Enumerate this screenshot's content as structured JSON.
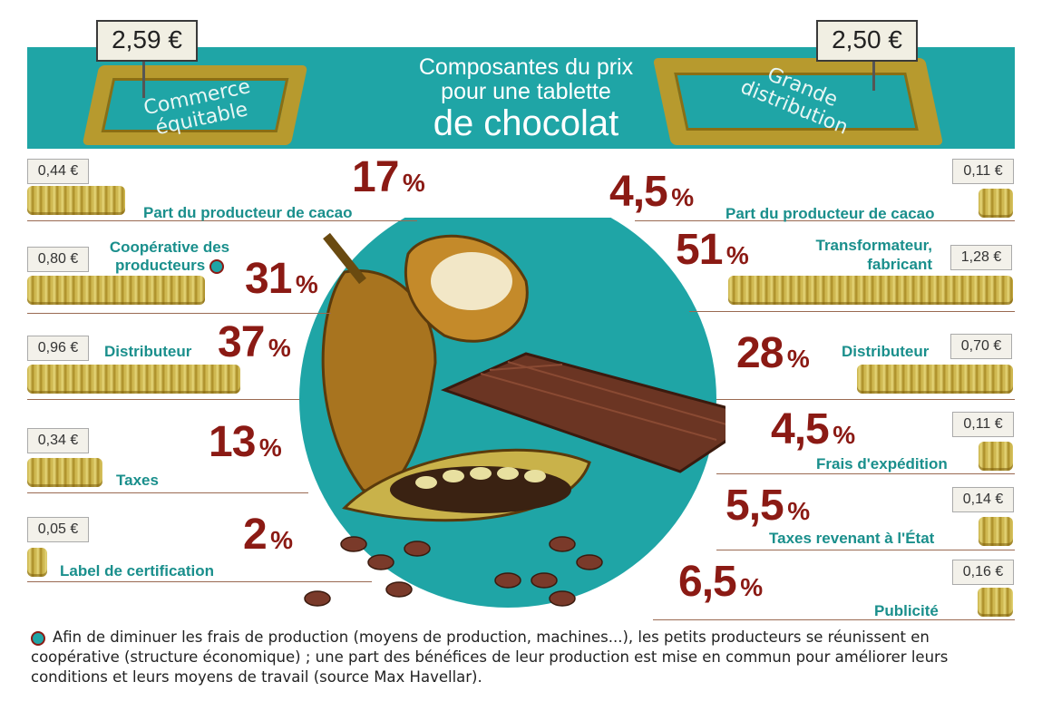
{
  "title": {
    "line1": "Composantes du prix",
    "line2": "pour une tablette",
    "line3": "de chocolat"
  },
  "left": {
    "price": "2,59 €",
    "tray_label": "Commerce équitable",
    "rows": [
      {
        "label": "Part du producteur de cacao",
        "amount": "0,44 €",
        "percent": "17",
        "value": 0.44
      },
      {
        "label": "Coopérative des producteurs",
        "amount": "0,80 €",
        "percent": "31",
        "value": 0.8
      },
      {
        "label": "Distributeur",
        "amount": "0,96 €",
        "percent": "37",
        "value": 0.96
      },
      {
        "label": "Taxes",
        "amount": "0,34 €",
        "percent": "13",
        "value": 0.34
      },
      {
        "label": "Label de certification",
        "amount": "0,05 €",
        "percent": "2",
        "value": 0.05
      }
    ]
  },
  "right": {
    "price": "2,50 €",
    "tray_label": "Grande distribution",
    "rows": [
      {
        "label": "Part du producteur de cacao",
        "amount": "0,11 €",
        "percent": "4,5",
        "value": 0.11
      },
      {
        "label": "Transformateur, fabricant",
        "amount": "1,28 €",
        "percent": "51",
        "value": 1.28
      },
      {
        "label": "Distributeur",
        "amount": "0,70 €",
        "percent": "28",
        "value": 0.7
      },
      {
        "label": "Frais d'expédition",
        "amount": "0,11 €",
        "percent": "4,5",
        "value": 0.11
      },
      {
        "label": "Taxes revenant à l'État",
        "amount": "0,14 €",
        "percent": "5,5",
        "value": 0.14
      },
      {
        "label": "Publicité",
        "amount": "0,16 €",
        "percent": "6,5",
        "value": 0.16
      }
    ]
  },
  "percent_sign": "%",
  "footnote": "Afin de diminuer les frais de production (moyens de production, machines...), les petits producteurs se réunissent en coopérative (structure économique) ; une part des bénéfices de leur production est mise en commun pour améliorer leurs conditions et leurs moyens de travail (source Max Havellar).",
  "colors": {
    "teal": "#1fa5a6",
    "label_teal": "#1a8f8c",
    "percent_red": "#8b1a14",
    "coin_gold": "#c9b24a"
  }
}
